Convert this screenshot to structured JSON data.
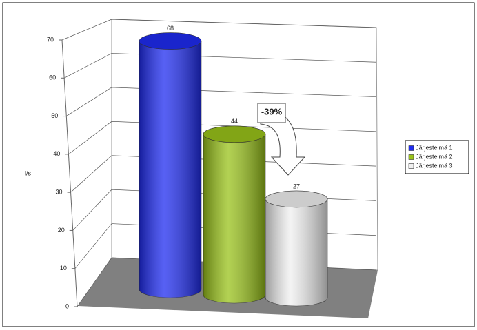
{
  "chart_data": {
    "type": "cylinder",
    "y_label": "l/s",
    "annotation": "-39%",
    "series": [
      {
        "name": "Järjestelmä 1",
        "color": "#1f2cf0",
        "values": [
          68
        ]
      },
      {
        "name": "Järjestelmä 2",
        "color": "#99c21a",
        "values": [
          44
        ]
      },
      {
        "name": "Järjestelmä 3",
        "color": "#f0f0f0",
        "values": [
          27
        ]
      }
    ],
    "ylim": [
      0,
      70
    ],
    "yticks": [
      0,
      10,
      20,
      30,
      40,
      50,
      60,
      70
    ],
    "grid": true,
    "legend": "right"
  }
}
